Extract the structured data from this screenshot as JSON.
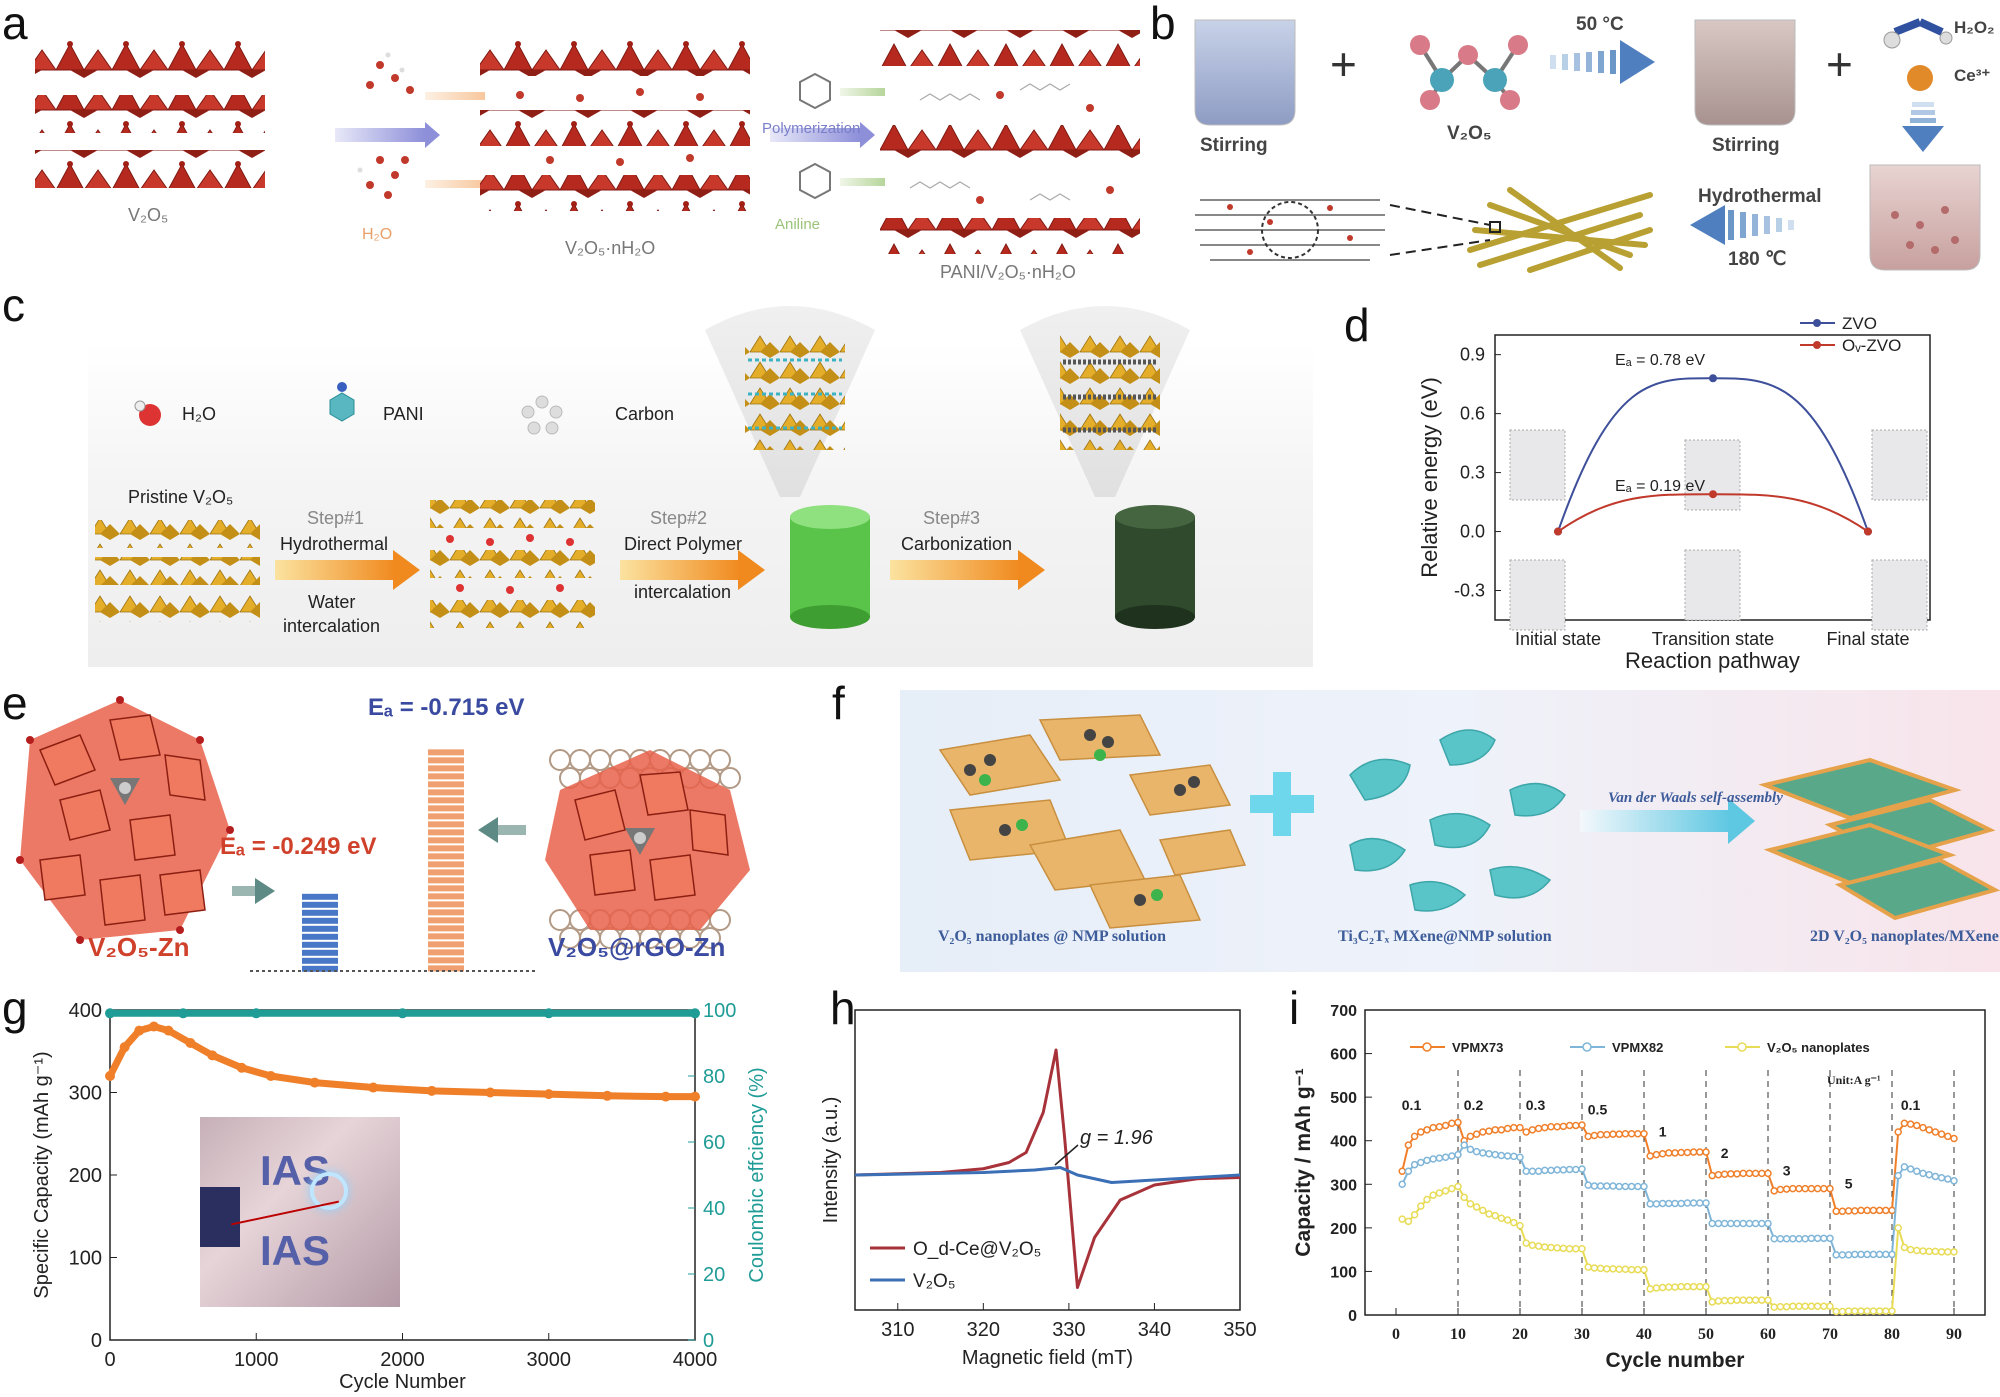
{
  "panels": {
    "a": {
      "label": "a",
      "v2o5": "V₂O₅",
      "h2o": "H₂O",
      "hydrated": "V₂O₅·nH₂O",
      "polymerization": "Polymerization",
      "aniline": "Aniline",
      "product": "PANI/V₂O₅·nH₂O"
    },
    "b": {
      "label": "b",
      "stirring1": "Stirring",
      "v2o5": "V₂O₅",
      "temp": "50 °C",
      "stirring2": "Stirring",
      "h2o2": "H₂O₂",
      "ce": "Ce³⁺",
      "hydrothermal": "Hydrothermal",
      "temp2": "180 ℃"
    },
    "c": {
      "label": "c",
      "legend_h2o": "H₂O",
      "legend_pani": "PANI",
      "legend_carbon": "Carbon",
      "pristine": "Pristine V₂O₅",
      "step1": "Step#1",
      "step1_a": "Hydrothermal",
      "step1_b": "Water",
      "step1_c": "intercalation",
      "step2": "Step#2",
      "step2_a": "Direct Polymer",
      "step2_b": "intercalation",
      "step3": "Step#3",
      "step3_a": "Carbonization"
    },
    "d": {
      "label": "d",
      "ea1": "Eₐ = 0.78 eV",
      "ea2": "Eₐ = 0.19 eV"
    },
    "e": {
      "label": "e",
      "ea_big": "Eₐ = -0.715 eV",
      "ea_small": "Eₐ = -0.249 eV",
      "left_name": "V₂O₅-Zn",
      "right_name": "V₂O₅@rGO-Zn"
    },
    "f": {
      "label": "f",
      "assembly": "Van der Waals self-assembly",
      "caption1": "V₂O₅ nanoplates @ NMP solution",
      "caption2": "Ti₃C₂Tₓ MXene@NMP solution",
      "caption3": "2D V₂O₅  nanoplates/MXene"
    },
    "g": {
      "label": "g",
      "inset_text": "IAS"
    },
    "h": {
      "label": "h",
      "g_label": "g = 1.96"
    },
    "i": {
      "label": "i",
      "unit": "Unit:A g⁻¹"
    }
  },
  "colors": {
    "vo_red": "#b6291e",
    "gold": "#d9a21b",
    "orange_series": "#f07f2a",
    "teal_series": "#1f9c96",
    "blue_series": "#3d4f9a",
    "red_series": "#c0392b",
    "epr_red": "#a8323a",
    "epr_blue": "#3b6fb6",
    "vpmx82": "#7fb5d8",
    "nanoplates": "#e8dc57"
  },
  "chart_data": [
    {
      "id": "d",
      "type": "line",
      "title": "",
      "xlabel": "Reaction pathway",
      "ylabel": "Relative energy (eV)",
      "categories": [
        "Initial state",
        "Transition state",
        "Final state"
      ],
      "ylim": [
        -0.45,
        1.0
      ],
      "yticks": [
        "0.9",
        "0.6",
        "0.3",
        "0.0",
        "-0.3"
      ],
      "ytick_values": [
        0.9,
        0.6,
        0.3,
        0.0,
        -0.3
      ],
      "series": [
        {
          "name": "ZVO",
          "values": [
            0.0,
            0.78,
            0.0
          ]
        },
        {
          "name": "Oᵥ-ZVO",
          "values": [
            0.0,
            0.19,
            0.0
          ]
        }
      ]
    },
    {
      "id": "g",
      "type": "line",
      "title": "",
      "xlabel": "Cycle Number",
      "ylabel": "Specific Capacity (mAh g⁻¹)",
      "y2label": "Coulombic effciency (%)",
      "xlim": [
        0,
        4000
      ],
      "ylim": [
        0,
        400
      ],
      "y2lim": [
        0,
        100
      ],
      "xticks": [
        "0",
        "1000",
        "2000",
        "3000",
        "4000"
      ],
      "xtick_values": [
        0,
        1000,
        2000,
        3000,
        4000
      ],
      "yticks": [
        "0",
        "100",
        "200",
        "300",
        "400"
      ],
      "ytick_values": [
        0,
        100,
        200,
        300,
        400
      ],
      "y2ticks": [
        "0",
        "20",
        "40",
        "60",
        "80",
        "100"
      ],
      "y2tick_values": [
        0,
        20,
        40,
        60,
        80,
        100
      ],
      "series": [
        {
          "name": "Specific Capacity",
          "x": [
            0,
            100,
            200,
            300,
            400,
            550,
            700,
            900,
            1100,
            1400,
            1800,
            2200,
            2600,
            3000,
            3400,
            3800,
            4000
          ],
          "values": [
            320,
            355,
            375,
            380,
            375,
            360,
            345,
            330,
            320,
            312,
            306,
            302,
            300,
            298,
            296,
            295,
            295
          ]
        },
        {
          "name": "Coulombic efficiency",
          "x": [
            0,
            500,
            1000,
            2000,
            3000,
            4000
          ],
          "values": [
            99,
            99,
            99,
            99,
            99,
            99
          ]
        }
      ]
    },
    {
      "id": "h",
      "type": "line",
      "title": "",
      "xlabel": "Magnetic field (mT)",
      "ylabel": "Intensity (a.u.)",
      "xlim": [
        305,
        350
      ],
      "xticks": [
        "310",
        "320",
        "330",
        "340",
        "350"
      ],
      "xtick_values": [
        310,
        320,
        330,
        340,
        350
      ],
      "series": [
        {
          "name": "O_d-Ce@V₂O₅",
          "x": [
            305,
            315,
            320,
            323,
            325,
            327,
            328.5,
            329.5,
            331,
            333,
            336,
            340,
            345,
            350
          ],
          "values": [
            0,
            0.02,
            0.05,
            0.1,
            0.18,
            0.5,
            1.0,
            0.3,
            -0.9,
            -0.5,
            -0.2,
            -0.08,
            -0.03,
            -0.02
          ]
        },
        {
          "name": "V₂O₅",
          "x": [
            305,
            320,
            326,
            329,
            331,
            335,
            340,
            350
          ],
          "values": [
            0,
            0.02,
            0.04,
            0.06,
            0.0,
            -0.06,
            -0.04,
            0
          ]
        }
      ]
    },
    {
      "id": "i",
      "type": "line",
      "title": "",
      "xlabel": "Cycle number",
      "ylabel": "Capacity / mAh g⁻¹",
      "xlim": [
        -5,
        95
      ],
      "ylim": [
        0,
        700
      ],
      "xticks": [
        "0",
        "10",
        "20",
        "30",
        "40",
        "50",
        "60",
        "70",
        "80",
        "90"
      ],
      "xtick_values": [
        0,
        10,
        20,
        30,
        40,
        50,
        60,
        70,
        80,
        90
      ],
      "yticks": [
        "0",
        "100",
        "200",
        "300",
        "400",
        "500",
        "600",
        "700"
      ],
      "ytick_values": [
        0,
        100,
        200,
        300,
        400,
        500,
        600,
        700
      ],
      "rate_labels": [
        "0.1",
        "0.2",
        "0.3",
        "0.5",
        "1",
        "2",
        "3",
        "5",
        "0.1"
      ],
      "rate_label_x": [
        2.5,
        12.5,
        22.5,
        32.5,
        43,
        53,
        63,
        73,
        83
      ],
      "rate_label_y": [
        470,
        470,
        470,
        460,
        410,
        360,
        320,
        290,
        470
      ],
      "series": [
        {
          "name": "VPMX73",
          "values": [
            330,
            390,
            410,
            420,
            425,
            430,
            432,
            435,
            440,
            442,
            400,
            410,
            415,
            420,
            422,
            425,
            425,
            428,
            430,
            430,
            420,
            425,
            428,
            430,
            432,
            432,
            433,
            435,
            435,
            436,
            410,
            412,
            414,
            414,
            415,
            415,
            416,
            416,
            416,
            416,
            365,
            368,
            370,
            372,
            372,
            373,
            373,
            374,
            374,
            374,
            320,
            322,
            323,
            324,
            324,
            325,
            325,
            325,
            325,
            325,
            285,
            288,
            289,
            290,
            290,
            290,
            290,
            290,
            290,
            290,
            238,
            238,
            239,
            239,
            240,
            240,
            240,
            240,
            240,
            240,
            420,
            440,
            438,
            435,
            430,
            425,
            420,
            415,
            410,
            405
          ]
        },
        {
          "name": "VPMX82",
          "values": [
            300,
            330,
            345,
            350,
            355,
            358,
            360,
            362,
            365,
            368,
            390,
            380,
            375,
            372,
            370,
            368,
            366,
            365,
            364,
            362,
            330,
            330,
            330,
            332,
            332,
            333,
            333,
            334,
            334,
            335,
            298,
            296,
            296,
            296,
            296,
            295,
            295,
            295,
            295,
            295,
            255,
            255,
            256,
            256,
            256,
            256,
            257,
            257,
            257,
            257,
            210,
            210,
            210,
            210,
            210,
            210,
            210,
            210,
            210,
            210,
            175,
            175,
            175,
            175,
            175,
            175,
            176,
            176,
            176,
            176,
            138,
            138,
            138,
            139,
            139,
            139,
            139,
            139,
            139,
            139,
            320,
            340,
            335,
            330,
            325,
            322,
            318,
            315,
            312,
            308
          ]
        },
        {
          "name": "V₂O₅ nanoplates",
          "values": [
            220,
            215,
            230,
            250,
            265,
            275,
            280,
            285,
            290,
            295,
            270,
            255,
            248,
            240,
            232,
            228,
            222,
            218,
            212,
            205,
            165,
            160,
            158,
            156,
            155,
            154,
            153,
            152,
            152,
            152,
            110,
            108,
            107,
            106,
            106,
            105,
            105,
            104,
            104,
            104,
            60,
            62,
            63,
            64,
            64,
            65,
            65,
            65,
            65,
            65,
            30,
            32,
            33,
            33,
            34,
            34,
            34,
            34,
            34,
            34,
            18,
            19,
            19,
            20,
            20,
            20,
            20,
            20,
            20,
            20,
            8,
            8,
            9,
            9,
            9,
            9,
            9,
            9,
            9,
            9,
            200,
            155,
            150,
            148,
            147,
            146,
            146,
            145,
            145,
            145
          ]
        }
      ]
    }
  ]
}
